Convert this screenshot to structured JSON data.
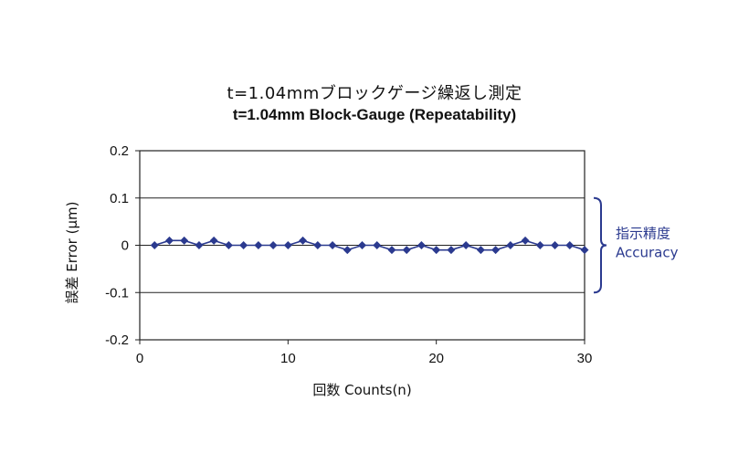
{
  "chart_data": {
    "type": "line",
    "title": "t=1.04mmブロックゲージ繰返し測定",
    "subtitle": "t=1.04mm Block-Gauge (Repeatability)",
    "xlabel": "回数 Counts(n)",
    "ylabel": "誤差 Error (μm)",
    "xlim": [
      0,
      30
    ],
    "ylim": [
      -0.2,
      0.2
    ],
    "x_ticks": [
      0,
      10,
      20,
      30
    ],
    "y_ticks": [
      0.2,
      0.1,
      0,
      -0.1,
      -0.2
    ],
    "y_tick_labels": [
      "0.2",
      "0.1",
      "0",
      "-0.1",
      "-0.2"
    ],
    "x_tick_labels": [
      "0",
      "10",
      "20",
      "30"
    ],
    "grid": "horizontal",
    "series": [
      {
        "color": "#2b3a8f",
        "marker": "diamond",
        "x": [
          1,
          2,
          3,
          4,
          5,
          6,
          7,
          8,
          9,
          10,
          11,
          12,
          13,
          14,
          15,
          16,
          17,
          18,
          19,
          20,
          21,
          22,
          23,
          24,
          25,
          26,
          27,
          28,
          29,
          30
        ],
        "y": [
          0,
          0.01,
          0.01,
          0,
          0.01,
          0,
          0,
          0,
          0,
          0,
          0.01,
          0,
          0,
          -0.01,
          0,
          0,
          -0.01,
          -0.01,
          0,
          -0.01,
          -0.01,
          0,
          -0.01,
          -0.01,
          0,
          0.01,
          0,
          0,
          0,
          -0.01
        ]
      }
    ],
    "annotation": {
      "label_ja": "指示精度",
      "label_en": "Accuracy",
      "range": [
        -0.1,
        0.1
      ],
      "color": "#2b3a8f"
    }
  }
}
